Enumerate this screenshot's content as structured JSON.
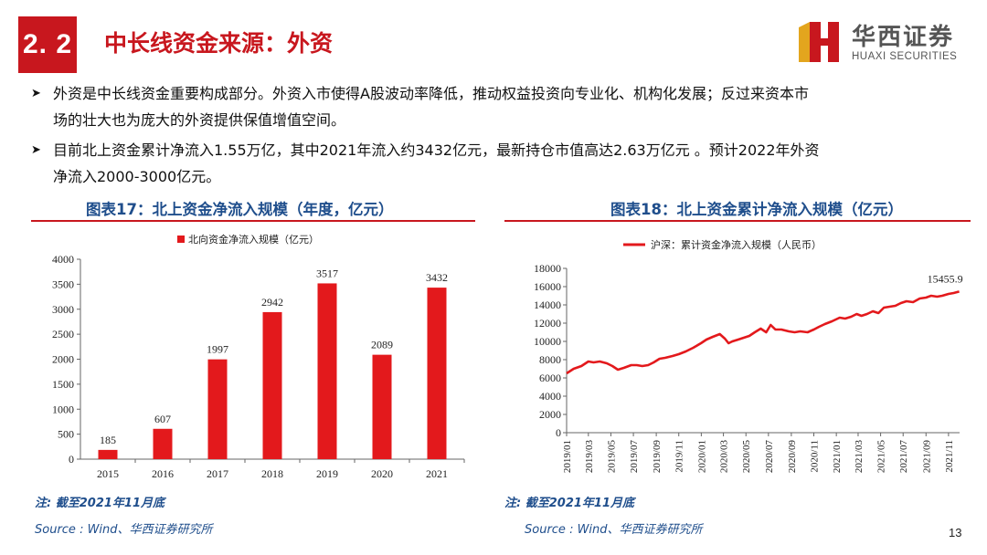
{
  "header": {
    "section_number": "2. 2",
    "title": "中长线资金来源：外资",
    "logo_cn": "华西证券",
    "logo_en": "HUAXI SECURITIES",
    "brand_color": "#c8171e"
  },
  "bullets": [
    {
      "line1": "外资是中长线资金重要构成部分。外资入市使得A股波动率降低，推动权益投资向专业化、机构化发展；反过来资本市",
      "line2": "场的壮大也为庞大的外资提供保值增值空间。"
    },
    {
      "line1": "目前北上资金累计净流入1.55万亿，其中2021年流入约3432亿元，最新持仓市值高达2.63万亿元 。预计2022年外资",
      "line2": "净流入2000-3000亿元。"
    }
  ],
  "left_chart": {
    "title": "图表17：北上资金净流入规模（年度，亿元）",
    "note": "注: 截至2021年11月底",
    "source": "Source : Wind、华西证券研究所"
  },
  "right_chart": {
    "title": "图表18：北上资金累计净流入规模（亿元）",
    "note": "注: 截至2021年11月底",
    "source": "Source : Wind、华西证券研究所"
  },
  "page_number": "13",
  "chart_data": [
    {
      "type": "bar",
      "legend": "北向资金净流入规模（亿元）",
      "legend_position": "top",
      "categories": [
        "2015",
        "2016",
        "2017",
        "2018",
        "2019",
        "2020",
        "2021"
      ],
      "series": [
        {
          "name": "北向资金净流入规模（亿元）",
          "values": [
            185,
            607,
            1997,
            2942,
            3517,
            2089,
            3432
          ]
        }
      ],
      "data_labels": [
        "185",
        "607",
        "1997",
        "2942",
        "3517",
        "2089",
        "3432"
      ],
      "ylim": [
        0,
        4000
      ],
      "yticks": [
        "0",
        "500",
        "1000",
        "1500",
        "2000",
        "2500",
        "3000",
        "3500",
        "4000"
      ],
      "color": "#e3191c",
      "grid": false
    },
    {
      "type": "line",
      "legend": "沪深：累计资金净流入规模（人民币）",
      "legend_position": "top",
      "x_ticks": [
        "2019/01",
        "2019/03",
        "2019/05",
        "2019/07",
        "2019/09",
        "2019/11",
        "2020/01",
        "2020/03",
        "2020/05",
        "2020/07",
        "2020/09",
        "2020/11",
        "2021/01",
        "2021/03",
        "2021/05",
        "2021/07",
        "2021/09",
        "2021/11"
      ],
      "series": [
        {
          "name": "沪深：累计资金净流入规模（人民币）",
          "x": [
            "2019-01-01",
            "2019-01-20",
            "2019-02-10",
            "2019-03-01",
            "2019-03-15",
            "2019-04-01",
            "2019-04-20",
            "2019-05-05",
            "2019-05-20",
            "2019-06-05",
            "2019-06-25",
            "2019-07-10",
            "2019-07-25",
            "2019-08-10",
            "2019-08-25",
            "2019-09-10",
            "2019-09-25",
            "2019-10-15",
            "2019-11-01",
            "2019-11-20",
            "2019-12-10",
            "2019-12-31",
            "2020-01-15",
            "2020-02-01",
            "2020-02-20",
            "2020-03-05",
            "2020-03-15",
            "2020-03-25",
            "2020-04-10",
            "2020-04-25",
            "2020-05-10",
            "2020-05-25",
            "2020-06-10",
            "2020-06-25",
            "2020-07-07",
            "2020-07-20",
            "2020-08-05",
            "2020-08-25",
            "2020-09-10",
            "2020-09-25",
            "2020-10-15",
            "2020-11-01",
            "2020-11-15",
            "2020-12-01",
            "2020-12-20",
            "2021-01-10",
            "2021-01-25",
            "2021-02-10",
            "2021-02-25",
            "2021-03-10",
            "2021-03-25",
            "2021-04-10",
            "2021-04-25",
            "2021-05-10",
            "2021-05-25",
            "2021-06-10",
            "2021-06-25",
            "2021-07-10",
            "2021-07-28",
            "2021-08-15",
            "2021-09-01",
            "2021-09-15",
            "2021-10-01",
            "2021-10-15",
            "2021-11-01",
            "2021-11-15",
            "2021-11-30"
          ],
          "y": [
            6500,
            7000,
            7300,
            7800,
            7700,
            7800,
            7600,
            7300,
            6900,
            7100,
            7400,
            7400,
            7300,
            7400,
            7700,
            8100,
            8200,
            8400,
            8600,
            8900,
            9300,
            9800,
            10200,
            10500,
            10800,
            10300,
            9800,
            10000,
            10200,
            10400,
            10600,
            11000,
            11400,
            11000,
            11800,
            11300,
            11300,
            11100,
            11000,
            11100,
            11000,
            11300,
            11600,
            11900,
            12200,
            12600,
            12500,
            12700,
            13000,
            12800,
            13000,
            13300,
            13100,
            13700,
            13800,
            13900,
            14200,
            14400,
            14300,
            14700,
            14800,
            15000,
            14900,
            15000,
            15200,
            15300,
            15455.9
          ]
        }
      ],
      "end_label": "15455.9",
      "ylim": [
        0,
        18000
      ],
      "yticks": [
        "0",
        "2000",
        "4000",
        "6000",
        "8000",
        "10000",
        "12000",
        "14000",
        "16000",
        "18000"
      ],
      "color": "#e3191c",
      "grid": false
    }
  ]
}
